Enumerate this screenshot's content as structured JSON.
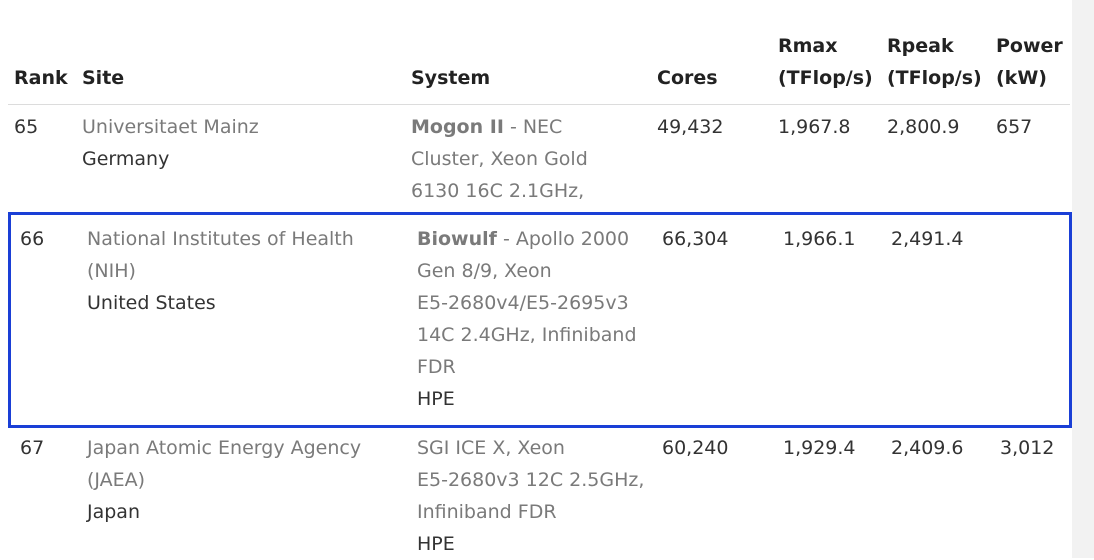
{
  "headers": {
    "rank": "Rank",
    "site": "Site",
    "system": "System",
    "cores": "Cores",
    "rmax_1": "Rmax",
    "rmax_2": "(TFlop/s)",
    "rpeak_1": "Rpeak",
    "rpeak_2": "(TFlop/s)",
    "power_1": "Power",
    "power_2": "(kW)"
  },
  "rows": [
    {
      "rank": "65",
      "site_name": "Universitaet Mainz",
      "site_name_lines": [
        "Universitaet Mainz"
      ],
      "country": "Germany",
      "system_name": "Mogon II",
      "system_desc_first": " - NEC",
      "system_desc_lines": [
        "Cluster, Xeon Gold",
        "6130 16C 2.1GHz,"
      ],
      "vendor": "",
      "cores": "49,432",
      "rmax": "1,967.8",
      "rpeak": "2,800.9",
      "power": "657"
    },
    {
      "rank": "66",
      "site_name_lines": [
        "National Institutes of Health",
        "(NIH)"
      ],
      "country": "United States",
      "system_name": "Biowulf",
      "system_desc_first": " - Apollo 2000",
      "system_desc_lines": [
        "Gen 8/9, Xeon",
        "E5-2680v4/E5-2695v3",
        "14C 2.4GHz, Infiniband",
        "FDR"
      ],
      "vendor": "HPE",
      "cores": "66,304",
      "rmax": "1,966.1",
      "rpeak": "2,491.4",
      "power": ""
    },
    {
      "rank": "67",
      "site_name_lines": [
        "Japan Atomic Energy Agency",
        "(JAEA)"
      ],
      "country": "Japan",
      "system_name": "",
      "system_desc_first": "SGI ICE X, Xeon",
      "system_desc_lines": [
        "E5-2680v3 12C 2.5GHz,",
        "Infiniband FDR"
      ],
      "vendor": "HPE",
      "cores": "60,240",
      "rmax": "1,929.4",
      "rpeak": "2,409.6",
      "power": "3,012"
    }
  ],
  "highlight": {
    "row": "66",
    "color": "#1a3fd6"
  }
}
